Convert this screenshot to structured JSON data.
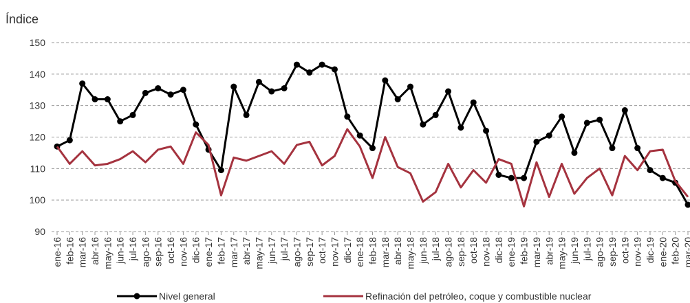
{
  "chart_data": {
    "type": "line",
    "y_axis_label": "Índice",
    "categories": [
      "ene-16",
      "feb-16",
      "mar-16",
      "abr-16",
      "may-16",
      "jun-16",
      "jul-16",
      "ago-16",
      "sep-16",
      "oct-16",
      "nov-16",
      "dic-16",
      "ene-17",
      "feb-17",
      "mar-17",
      "abr-17",
      "may-17",
      "jun-17",
      "jul-17",
      "ago-17",
      "sep-17",
      "oct-17",
      "nov-17",
      "dic-17",
      "ene-18",
      "feb-18",
      "mar-18",
      "abr-18",
      "may-18",
      "jun-18",
      "jul-18",
      "ago-18",
      "sep-18",
      "oct-18",
      "nov-18",
      "dic-18",
      "ene-19",
      "feb-19",
      "mar-19",
      "abr-19",
      "may-19",
      "jun-19",
      "jul-19",
      "ago-19",
      "sep-19",
      "oct-19",
      "nov-19",
      "dic-19",
      "ene-20",
      "feb-20",
      "mar-20"
    ],
    "series": [
      {
        "name": "Nivel general",
        "color": "#000000",
        "markers": true,
        "values": [
          117,
          119,
          137,
          132,
          132,
          125,
          127,
          134,
          135.5,
          133.5,
          135,
          124,
          116,
          109.5,
          136,
          127,
          137.5,
          134.5,
          135.5,
          143,
          140.5,
          143,
          141.5,
          126.5,
          120.5,
          116.5,
          138,
          132,
          136,
          124,
          127,
          134.5,
          123,
          131,
          122,
          108,
          107,
          107,
          118.5,
          120.5,
          126.5,
          115,
          124.5,
          125.5,
          116.5,
          128.5,
          116.5,
          109.5,
          107,
          105.5,
          98.5
        ]
      },
      {
        "name": "Refinación del petróleo, coque y combustible nuclear",
        "color": "#a5333f",
        "markers": false,
        "values": [
          117,
          111.5,
          115.5,
          111,
          111.5,
          113,
          115.5,
          112,
          116,
          117,
          111.5,
          121.5,
          117.5,
          101.5,
          113.5,
          112.5,
          114,
          115.5,
          111.5,
          117.5,
          118.5,
          111,
          114,
          122.5,
          117,
          107,
          120,
          110.5,
          108.5,
          99.5,
          102.5,
          111.5,
          104,
          109.5,
          105.5,
          113,
          111.5,
          98,
          112,
          101,
          111.5,
          102,
          107,
          110,
          101.5,
          114,
          109.5,
          115.5,
          116,
          106,
          101
        ]
      }
    ],
    "ylim": [
      90,
      150
    ],
    "yticks": [
      90,
      100,
      110,
      120,
      130,
      140,
      150
    ],
    "grid": true
  }
}
